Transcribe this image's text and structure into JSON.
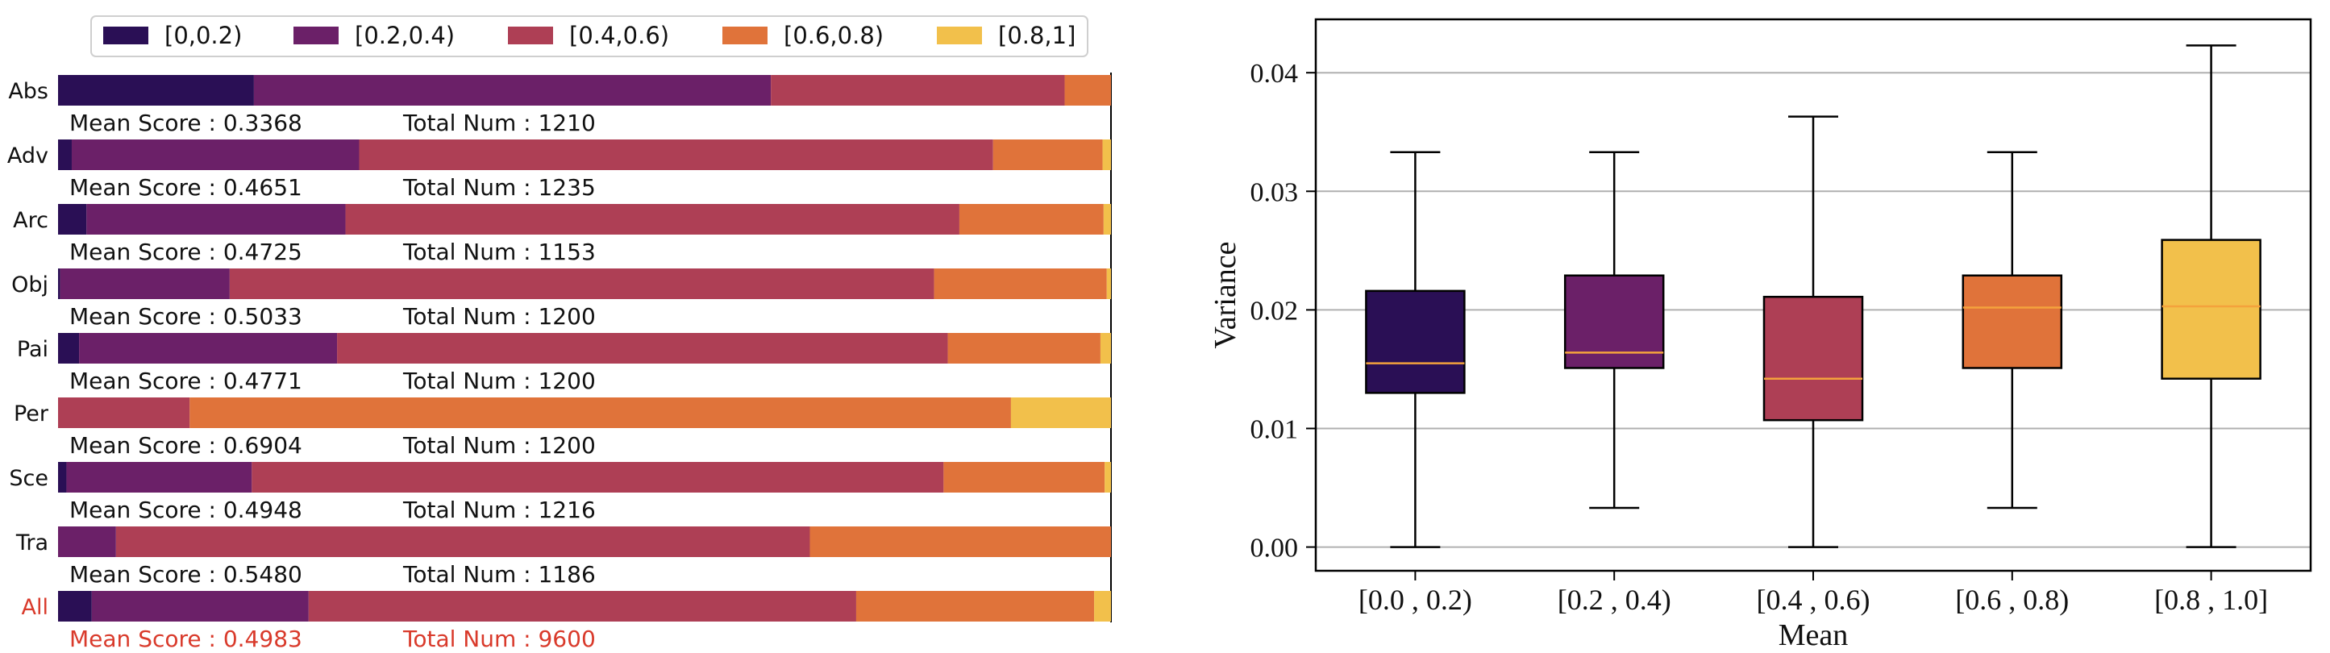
{
  "chart_data": [
    {
      "type": "bar",
      "orientation": "horizontal",
      "stacked": true,
      "normalized": true,
      "legend_position": "top",
      "legend": [
        {
          "label": "[0,0.2)",
          "color": "#2a0f55"
        },
        {
          "label": "[0.2,0.4)",
          "color": "#6b2068"
        },
        {
          "label": "[0.4,0.6)",
          "color": "#ae3f55"
        },
        {
          "label": "[0.6,0.8)",
          "color": "#e0733a"
        },
        {
          "label": "[0.8,1]",
          "color": "#f2c04b"
        }
      ],
      "mean_score_label": "Mean Score :",
      "total_num_label": "Total Num :",
      "categories": [
        {
          "name": "Abs",
          "segments": [
            0.186,
            0.491,
            0.279,
            0.044,
            0.0
          ],
          "mean_score": "0.3368",
          "total_num": "1210",
          "highlight": false
        },
        {
          "name": "Adv",
          "segments": [
            0.013,
            0.273,
            0.602,
            0.104,
            0.008
          ],
          "mean_score": "0.4651",
          "total_num": "1235",
          "highlight": false
        },
        {
          "name": "Arc",
          "segments": [
            0.027,
            0.246,
            0.583,
            0.137,
            0.007
          ],
          "mean_score": "0.4725",
          "total_num": "1153",
          "highlight": false
        },
        {
          "name": "Obj",
          "segments": [
            0.002,
            0.161,
            0.669,
            0.164,
            0.004
          ],
          "mean_score": "0.5033",
          "total_num": "1200",
          "highlight": false
        },
        {
          "name": "Pai",
          "segments": [
            0.02,
            0.245,
            0.58,
            0.145,
            0.01
          ],
          "mean_score": "0.4771",
          "total_num": "1200",
          "highlight": false
        },
        {
          "name": "Per",
          "segments": [
            0.0,
            0.0,
            0.125,
            0.78,
            0.095
          ],
          "mean_score": "0.6904",
          "total_num": "1200",
          "highlight": false
        },
        {
          "name": "Sce",
          "segments": [
            0.008,
            0.176,
            0.657,
            0.153,
            0.006
          ],
          "mean_score": "0.4948",
          "total_num": "1216",
          "highlight": false
        },
        {
          "name": "Tra",
          "segments": [
            0.0,
            0.055,
            0.659,
            0.286,
            0.0
          ],
          "mean_score": "0.5480",
          "total_num": "1186",
          "highlight": false
        },
        {
          "name": "All",
          "segments": [
            0.032,
            0.206,
            0.52,
            0.226,
            0.016
          ],
          "mean_score": "0.4983",
          "total_num": "9600",
          "highlight": true
        }
      ],
      "highlight_color": "#d93a2b",
      "xlim": [
        0,
        1
      ]
    },
    {
      "type": "box",
      "xlabel": "Mean",
      "ylabel": "Variance",
      "ylim": [
        -0.002,
        0.0445
      ],
      "yticks": [
        "0.00",
        "0.01",
        "0.02",
        "0.03",
        "0.04"
      ],
      "ytick_values": [
        0.0,
        0.01,
        0.02,
        0.03,
        0.04
      ],
      "grid": "horizontal",
      "median_color": "#f4a23c",
      "boxes": [
        {
          "label": "[0.0 , 0.2)",
          "color": "#2a0f55",
          "whisker_low": 0.0,
          "q1": 0.013,
          "median": 0.0155,
          "q3": 0.0216,
          "whisker_high": 0.0333
        },
        {
          "label": "[0.2 , 0.4)",
          "color": "#6b2068",
          "whisker_low": 0.0033,
          "q1": 0.0151,
          "median": 0.0164,
          "q3": 0.0229,
          "whisker_high": 0.0333
        },
        {
          "label": "[0.4 , 0.6)",
          "color": "#ae3f55",
          "whisker_low": 0.0,
          "q1": 0.0107,
          "median": 0.0142,
          "q3": 0.0211,
          "whisker_high": 0.0363
        },
        {
          "label": "[0.6 , 0.8)",
          "color": "#e0733a",
          "whisker_low": 0.0033,
          "q1": 0.0151,
          "median": 0.0202,
          "q3": 0.0229,
          "whisker_high": 0.0333
        },
        {
          "label": "[0.8 , 1.0]",
          "color": "#f2c04b",
          "whisker_low": 0.0,
          "q1": 0.0142,
          "median": 0.0203,
          "q3": 0.0259,
          "whisker_high": 0.0423
        }
      ]
    }
  ]
}
